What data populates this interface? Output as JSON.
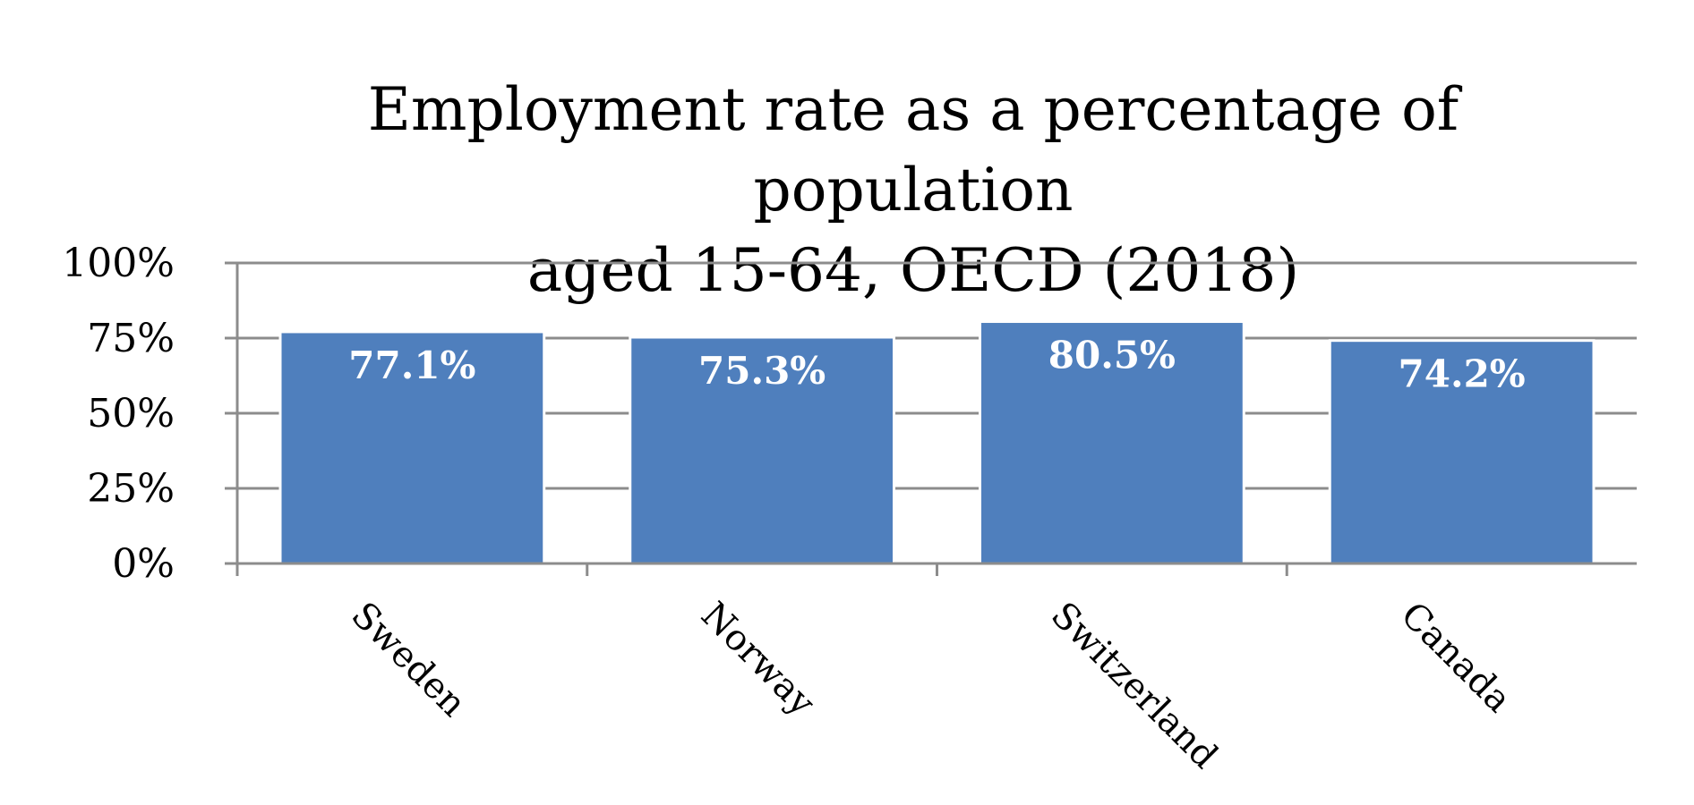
{
  "chart_data": {
    "type": "bar",
    "title_lines": [
      "Employment rate as a percentage of population",
      "aged 15-64, OECD (2018)"
    ],
    "categories": [
      "Sweden",
      "Norway",
      "Switzerland",
      "Canada"
    ],
    "values": [
      77.1,
      75.3,
      80.5,
      74.2
    ],
    "data_labels": [
      "77.1%",
      "75.3%",
      "80.5%",
      "74.2%"
    ],
    "ylim": [
      0,
      100
    ],
    "yticks": [
      0,
      25,
      50,
      75,
      100
    ],
    "ytick_labels": [
      "0%",
      "25%",
      "50%",
      "75%",
      "100%"
    ],
    "xlabel": "",
    "ylabel": "",
    "grid": true,
    "legend": "none",
    "colors": {
      "bar": "#4f7fbd",
      "bar_edge": "#ffffff",
      "grid": "#8c8c8c",
      "axis": "#8c8c8c",
      "label": "#ffffff"
    }
  }
}
